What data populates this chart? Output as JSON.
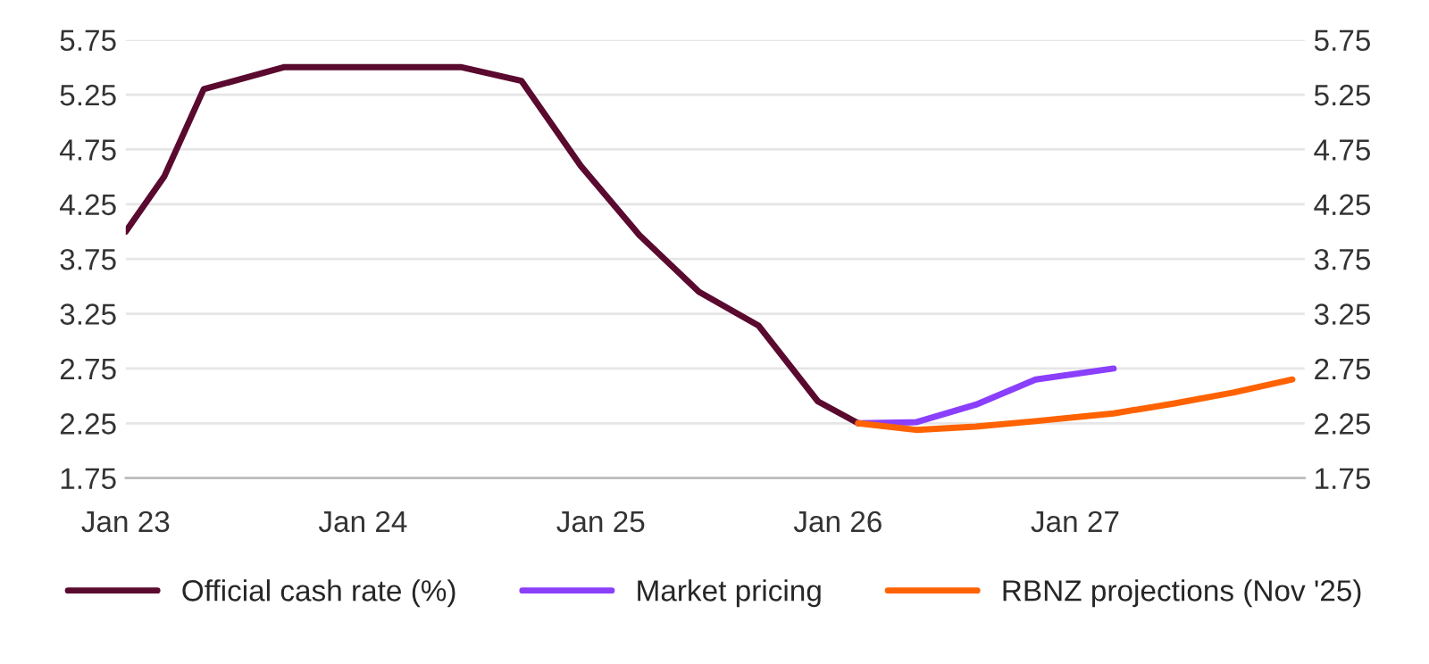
{
  "chart_data": {
    "type": "line",
    "xlim": [
      "2023-01-01",
      "2027-12-20"
    ],
    "xticks": [
      {
        "value": "2023-01-01",
        "label": "Jan 23"
      },
      {
        "value": "2024-01-01",
        "label": "Jan 24"
      },
      {
        "value": "2025-01-01",
        "label": "Jan 25"
      },
      {
        "value": "2026-01-01",
        "label": "Jan 26"
      },
      {
        "value": "2027-01-01",
        "label": "Jan 27"
      }
    ],
    "ylim": [
      1.75,
      5.75
    ],
    "yticks": [
      1.75,
      2.25,
      2.75,
      3.25,
      3.75,
      4.25,
      4.75,
      5.25,
      5.75
    ],
    "y2lim": [
      1.75,
      5.75
    ],
    "y2ticks": [
      1.75,
      2.25,
      2.75,
      3.25,
      3.75,
      4.25,
      4.75,
      5.25,
      5.75
    ],
    "grid": "y",
    "legend": "bottom",
    "line_style": "solid",
    "marker": "none",
    "series": [
      {
        "name": "Official cash rate (%)",
        "color": "#5a0a2e",
        "x": [
          "2023-01",
          "2023-03",
          "2023-05",
          "2023-09",
          "2024-06",
          "2024-09",
          "2024-12",
          "2025-03",
          "2025-06",
          "2025-09",
          "2025-12",
          "2026-02"
        ],
        "values": [
          4.0,
          4.5,
          5.3,
          5.5,
          5.5,
          5.375,
          4.6,
          3.97,
          3.45,
          3.14,
          2.45,
          2.25
        ]
      },
      {
        "name": "Market pricing",
        "color": "#8a3ffc",
        "x": [
          "2026-02",
          "2026-05",
          "2026-08",
          "2026-11",
          "2027-03"
        ],
        "values": [
          2.25,
          2.26,
          2.42,
          2.65,
          2.75
        ]
      },
      {
        "name": "RBNZ projections (Nov '25)",
        "color": "#ff6200",
        "x": [
          "2026-02",
          "2026-05",
          "2026-08",
          "2026-11",
          "2027-03",
          "2027-06",
          "2027-09",
          "2027-12"
        ],
        "values": [
          2.25,
          2.19,
          2.22,
          2.27,
          2.34,
          2.43,
          2.53,
          2.65
        ]
      }
    ]
  }
}
